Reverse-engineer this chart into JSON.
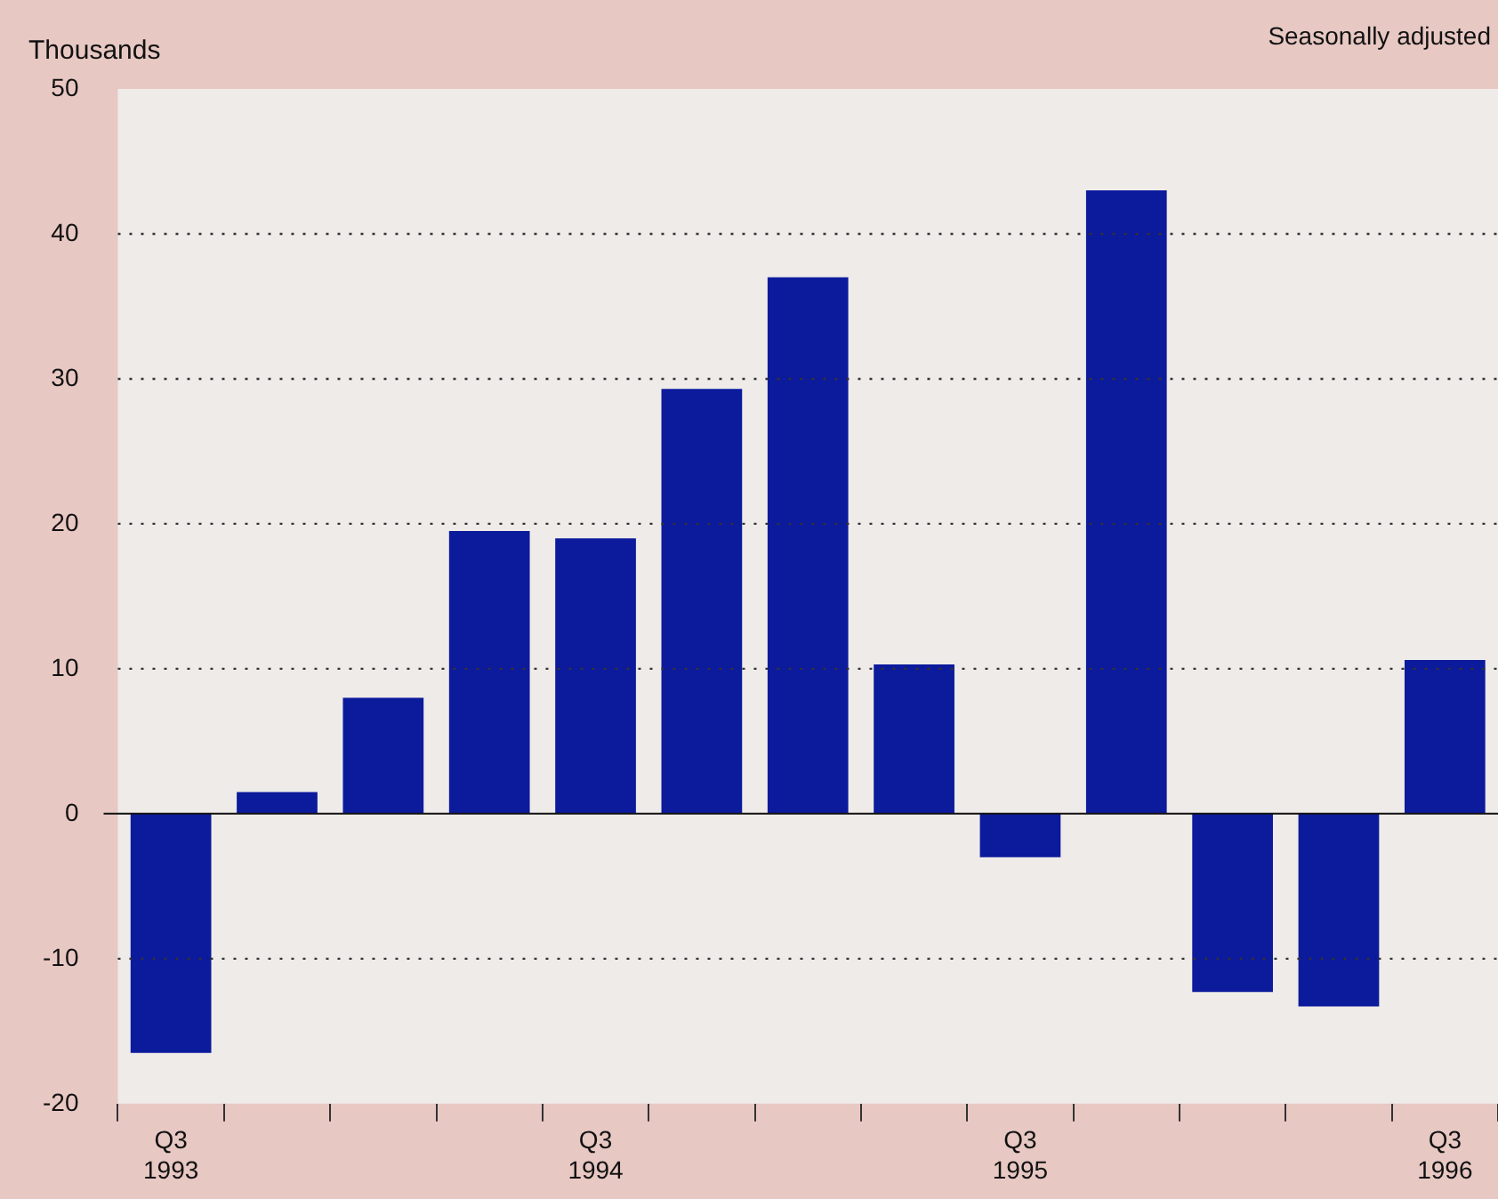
{
  "chart_data": {
    "type": "bar",
    "ylabel": "Thousands",
    "subtitle": "Seasonally adjusted",
    "categories": [
      "Q3 1993",
      null,
      null,
      null,
      "Q3 1994",
      null,
      null,
      null,
      "Q3 1995",
      null,
      null,
      null,
      "Q3 1996"
    ],
    "values": [
      -16.5,
      1.5,
      8,
      19.5,
      19,
      29.3,
      37,
      10.3,
      -3,
      43,
      -12.3,
      -13.3,
      10.6
    ],
    "color": "#0c1a9c",
    "ylim": [
      -20,
      50
    ],
    "yticks": [
      -20,
      -10,
      0,
      10,
      20,
      30,
      40,
      50
    ],
    "grid": "y",
    "legend": false
  }
}
